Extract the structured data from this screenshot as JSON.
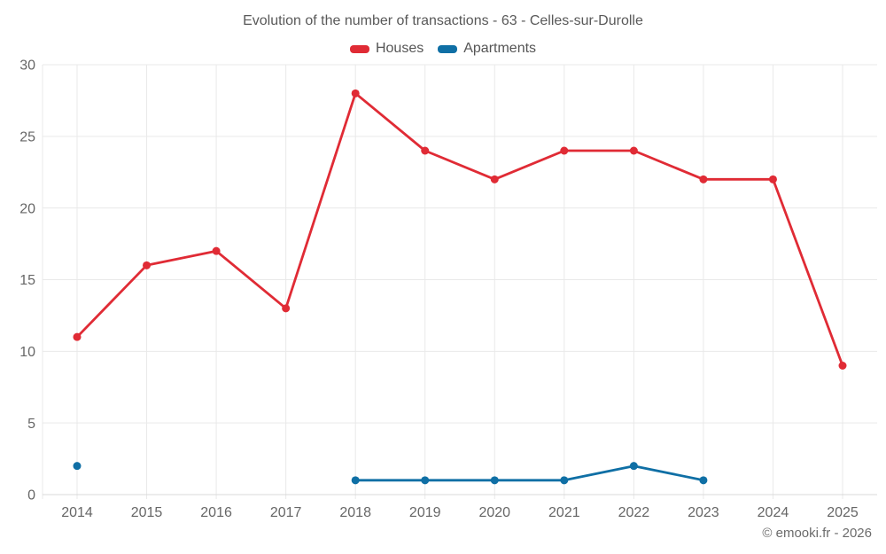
{
  "chart_data": {
    "type": "line",
    "title": "Evolution of the number of transactions - 63 - Celles-sur-Durolle",
    "categories": [
      "2014",
      "2015",
      "2016",
      "2017",
      "2018",
      "2019",
      "2020",
      "2021",
      "2022",
      "2023",
      "2024",
      "2025"
    ],
    "series": [
      {
        "name": "Houses",
        "color": "#e02b35",
        "values": [
          11,
          16,
          17,
          13,
          28,
          24,
          22,
          24,
          24,
          22,
          22,
          9
        ]
      },
      {
        "name": "Apartments",
        "color": "#0f6fa5",
        "values": [
          2,
          null,
          null,
          null,
          1,
          1,
          1,
          1,
          2,
          1,
          null,
          null
        ]
      }
    ],
    "ylim": [
      0,
      30
    ],
    "ytick_step": 5,
    "yticks": [
      0,
      5,
      10,
      15,
      20,
      25,
      30
    ],
    "grid": true,
    "legend_position": "top",
    "xlabel": "",
    "ylabel": ""
  },
  "footer": {
    "copyright": "© emooki.fr - 2026"
  },
  "style": {
    "grid_color": "#e9e9e9",
    "axis_color": "#d9d9d9",
    "tick_label_color": "#666666",
    "title_color": "#595959"
  }
}
